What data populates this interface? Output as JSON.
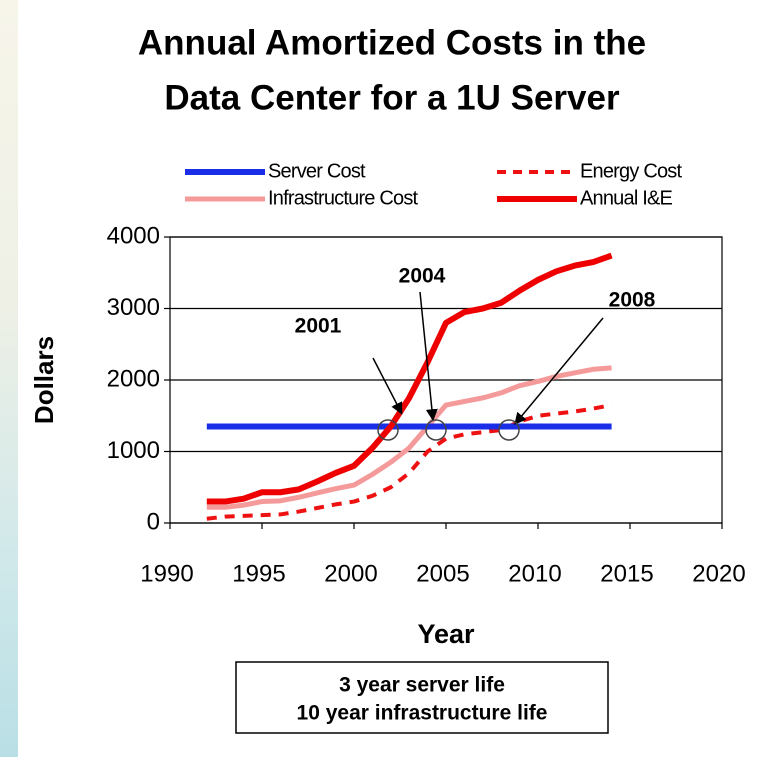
{
  "chart_data": {
    "type": "line",
    "title": [
      "Annual Amortized Costs in the",
      "Data Center for a 1U Server"
    ],
    "x_label": "Year",
    "y_label": "Dollars",
    "note": [
      "3 year server life",
      "10 year infrastructure life"
    ],
    "annotations": [
      "2001",
      "2004",
      "2008"
    ],
    "x": [
      1992,
      1993,
      1994,
      1995,
      1996,
      1997,
      1998,
      1999,
      2000,
      2001,
      2002,
      2003,
      2004,
      2005,
      2006,
      2007,
      2008,
      2009,
      2010,
      2011,
      2012,
      2013,
      2014
    ],
    "xlim": [
      1990,
      2020
    ],
    "xticks": [
      1990,
      1995,
      2000,
      2005,
      2010,
      2015,
      2020
    ],
    "ylim": [
      0,
      4000
    ],
    "yticks": [
      0,
      1000,
      2000,
      3000,
      4000
    ],
    "grid": true,
    "series": [
      {
        "name": "Server Cost",
        "color": "#1a2ee8",
        "width": 6,
        "dash": false,
        "values": [
          1350,
          1350,
          1350,
          1350,
          1350,
          1350,
          1350,
          1350,
          1350,
          1350,
          1350,
          1350,
          1350,
          1350,
          1350,
          1350,
          1350,
          1350,
          1350,
          1350,
          1350,
          1350,
          1350
        ]
      },
      {
        "name": "Energy Cost",
        "color": "#ee1111",
        "width": 4,
        "dash": true,
        "values": [
          60,
          90,
          100,
          110,
          120,
          160,
          210,
          260,
          300,
          380,
          500,
          700,
          1000,
          1180,
          1240,
          1270,
          1300,
          1420,
          1500,
          1530,
          1560,
          1600,
          1650
        ]
      },
      {
        "name": "Infrastructure Cost",
        "color": "#f59a9a",
        "width": 5,
        "dash": false,
        "values": [
          220,
          220,
          250,
          300,
          310,
          360,
          420,
          480,
          530,
          680,
          850,
          1050,
          1350,
          1650,
          1700,
          1750,
          1820,
          1920,
          1980,
          2050,
          2100,
          2150,
          2170
        ]
      },
      {
        "name": "Annual I&E",
        "color": "#ee0000",
        "width": 6,
        "dash": false,
        "values": [
          300,
          300,
          340,
          430,
          430,
          470,
          580,
          700,
          800,
          1050,
          1350,
          1750,
          2250,
          2800,
          2950,
          3000,
          3080,
          3250,
          3400,
          3520,
          3600,
          3650,
          3740
        ]
      }
    ]
  }
}
